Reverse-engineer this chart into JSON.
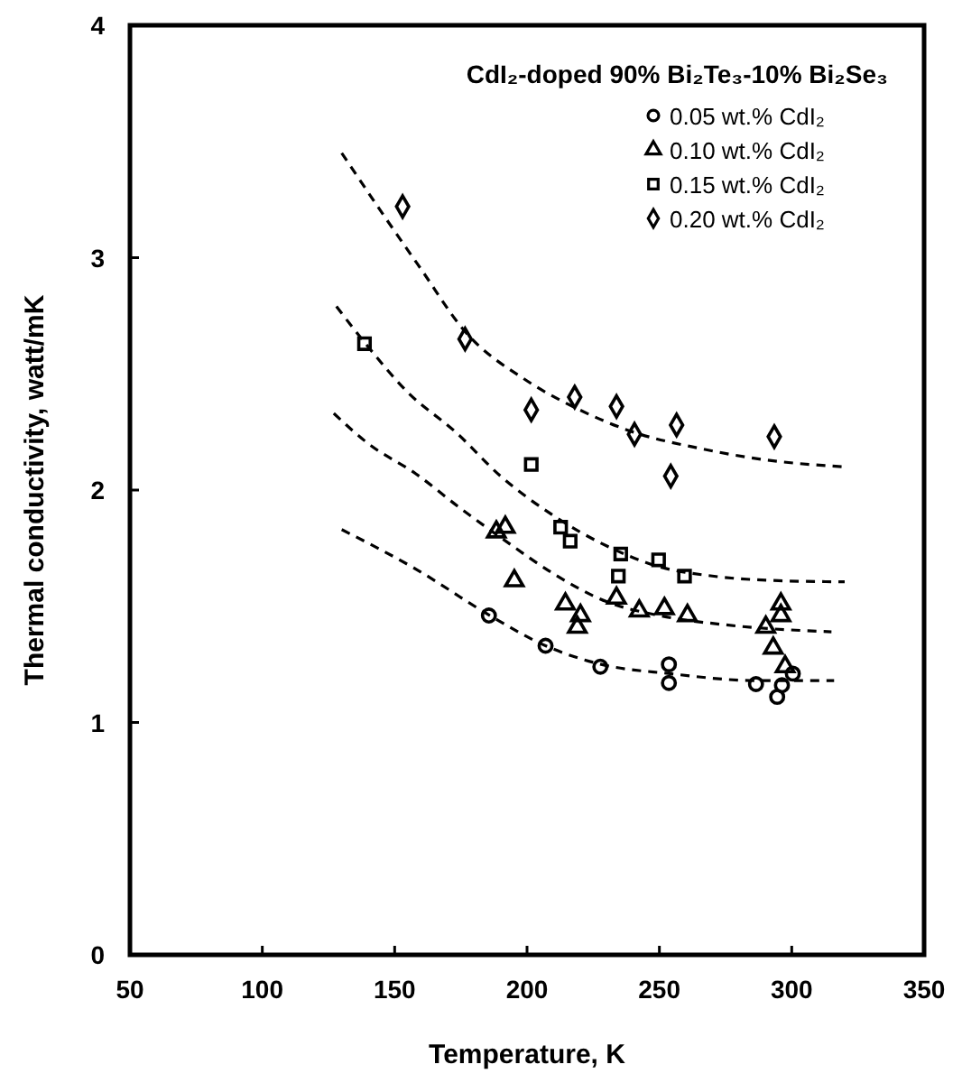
{
  "chart_data": {
    "type": "scatter",
    "title": "CdI₂-doped 90% Bi₂Te₃-10% Bi₂Se₃",
    "xlabel": "Temperature, K",
    "ylabel": "Thermal conductivity, watt/mK",
    "xlim": [
      50,
      350
    ],
    "xticks": [
      50,
      100,
      150,
      200,
      250,
      300,
      350
    ],
    "ylim": [
      0,
      4
    ],
    "yticks": [
      0,
      1,
      2,
      3,
      4
    ],
    "grid": false,
    "legend": "top right",
    "series": [
      {
        "name": "0.05 wt.% CdI₂",
        "marker": "circle",
        "color": "#000000",
        "x": [
          185.6,
          207,
          227.7,
          253.6,
          253.6,
          286.5,
          296.3,
          294.5,
          300.4
        ],
        "values": [
          1.46,
          1.33,
          1.24,
          1.25,
          1.17,
          1.165,
          1.16,
          1.11,
          1.21
        ]
      },
      {
        "name": "0.10 wt.% CdI₂",
        "marker": "triangle",
        "color": "#000000",
        "x": [
          188.4,
          191.8,
          195.2,
          214.5,
          220.2,
          219,
          233.8,
          242.4,
          251.9,
          260.6,
          295.9,
          295.9,
          290.2,
          293,
          297.5
        ],
        "values": [
          1.82,
          1.84,
          1.61,
          1.51,
          1.46,
          1.41,
          1.535,
          1.48,
          1.49,
          1.46,
          1.46,
          1.51,
          1.41,
          1.32,
          1.24
        ]
      },
      {
        "name": "0.15 wt.% CdI₂",
        "marker": "square",
        "color": "#000000",
        "x": [
          138.6,
          201.6,
          212.7,
          216.3,
          235.4,
          234.5,
          249.7,
          259.5
        ],
        "values": [
          2.63,
          2.11,
          1.84,
          1.78,
          1.725,
          1.63,
          1.7,
          1.63
        ]
      },
      {
        "name": "0.20 wt.% CdI₂",
        "marker": "diamond",
        "color": "#000000",
        "x": [
          153,
          176.6,
          201.6,
          218,
          233.8,
          240.6,
          256.5,
          254.3,
          293.4
        ],
        "values": [
          3.22,
          2.65,
          2.345,
          2.4,
          2.36,
          2.24,
          2.28,
          2.06,
          2.23
        ]
      },
      {
        "type": "line",
        "line_style": "dashed",
        "color": "#000000",
        "x": [
          130,
          158,
          186,
          207,
          228,
          254,
          287,
          316
        ],
        "values": [
          1.83,
          1.66,
          1.46,
          1.33,
          1.25,
          1.21,
          1.18,
          1.18
        ]
      },
      {
        "type": "line",
        "line_style": "dashed",
        "color": "#000000",
        "x": [
          127,
          140,
          158,
          175,
          192,
          210,
          230,
          250,
          275,
          315
        ],
        "values": [
          2.33,
          2.2,
          2.07,
          1.92,
          1.78,
          1.64,
          1.52,
          1.46,
          1.42,
          1.39
        ]
      },
      {
        "type": "line",
        "line_style": "dashed",
        "color": "#000000",
        "x": [
          128,
          139,
          155,
          173,
          190,
          210,
          230,
          250,
          270,
          295,
          320
        ],
        "values": [
          2.79,
          2.63,
          2.42,
          2.25,
          2.06,
          1.89,
          1.76,
          1.67,
          1.63,
          1.61,
          1.605
        ]
      },
      {
        "type": "line",
        "line_style": "dashed",
        "color": "#000000",
        "x": [
          130,
          146,
          160,
          176,
          200,
          219,
          240,
          265,
          290,
          320
        ],
        "values": [
          3.45,
          3.18,
          2.95,
          2.69,
          2.47,
          2.35,
          2.25,
          2.18,
          2.13,
          2.1
        ]
      }
    ]
  }
}
